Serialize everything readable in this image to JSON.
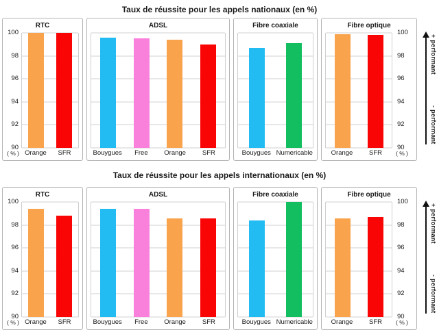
{
  "colors": {
    "orange": "#F9A34C",
    "red": "#FA0505",
    "cyan": "#22BCF2",
    "pink": "#F981DC",
    "green": "#12BE60",
    "panel_border": "#B3B3B3",
    "gridline": "#D0D0D0",
    "arrow": "#111111"
  },
  "chart_data": [
    {
      "type": "bar",
      "title": "Taux de réussite pour les appels nationaux (en %)",
      "ylim": [
        90,
        100
      ],
      "yticks": [
        100,
        98,
        96,
        94,
        92,
        90
      ],
      "unit_label": "( % )",
      "grid": true,
      "arrow": {
        "plus": "+ performant",
        "minus": "- performant"
      },
      "panels": [
        {
          "name": "RTC",
          "bars": [
            {
              "label": "Orange",
              "value": 100,
              "color": "orange"
            },
            {
              "label": "SFR",
              "value": 100,
              "color": "red"
            }
          ]
        },
        {
          "name": "ADSL",
          "bars": [
            {
              "label": "Bouygues",
              "value": 99.6,
              "color": "cyan"
            },
            {
              "label": "Free",
              "value": 99.5,
              "color": "pink"
            },
            {
              "label": "Orange",
              "value": 99.4,
              "color": "orange"
            },
            {
              "label": "SFR",
              "value": 99.0,
              "color": "red"
            }
          ]
        },
        {
          "name": "Fibre coaxiale",
          "bars": [
            {
              "label": "Bouygues",
              "value": 98.7,
              "color": "cyan"
            },
            {
              "label": "Numericable",
              "value": 99.1,
              "color": "green"
            }
          ]
        },
        {
          "name": "Fibre optique",
          "bars": [
            {
              "label": "Orange",
              "value": 99.9,
              "color": "orange"
            },
            {
              "label": "SFR",
              "value": 99.8,
              "color": "red"
            }
          ]
        }
      ]
    },
    {
      "type": "bar",
      "title": "Taux de réussite pour les appels internationaux (en %)",
      "ylim": [
        90,
        100
      ],
      "yticks": [
        100,
        98,
        96,
        94,
        92,
        90
      ],
      "unit_label": "( % )",
      "grid": true,
      "arrow": {
        "plus": "+ performant",
        "minus": "- performant"
      },
      "panels": [
        {
          "name": "RTC",
          "bars": [
            {
              "label": "Orange",
              "value": 99.4,
              "color": "orange"
            },
            {
              "label": "SFR",
              "value": 98.8,
              "color": "red"
            }
          ]
        },
        {
          "name": "ADSL",
          "bars": [
            {
              "label": "Bouygues",
              "value": 99.4,
              "color": "cyan"
            },
            {
              "label": "Free",
              "value": 99.4,
              "color": "pink"
            },
            {
              "label": "Orange",
              "value": 98.6,
              "color": "orange"
            },
            {
              "label": "SFR",
              "value": 98.6,
              "color": "red"
            }
          ]
        },
        {
          "name": "Fibre coaxiale",
          "bars": [
            {
              "label": "Bouygues",
              "value": 98.4,
              "color": "cyan"
            },
            {
              "label": "Numericable",
              "value": 100,
              "color": "green"
            }
          ]
        },
        {
          "name": "Fibre optique",
          "bars": [
            {
              "label": "Orange",
              "value": 98.6,
              "color": "orange"
            },
            {
              "label": "SFR",
              "value": 98.7,
              "color": "red"
            }
          ]
        }
      ]
    }
  ]
}
